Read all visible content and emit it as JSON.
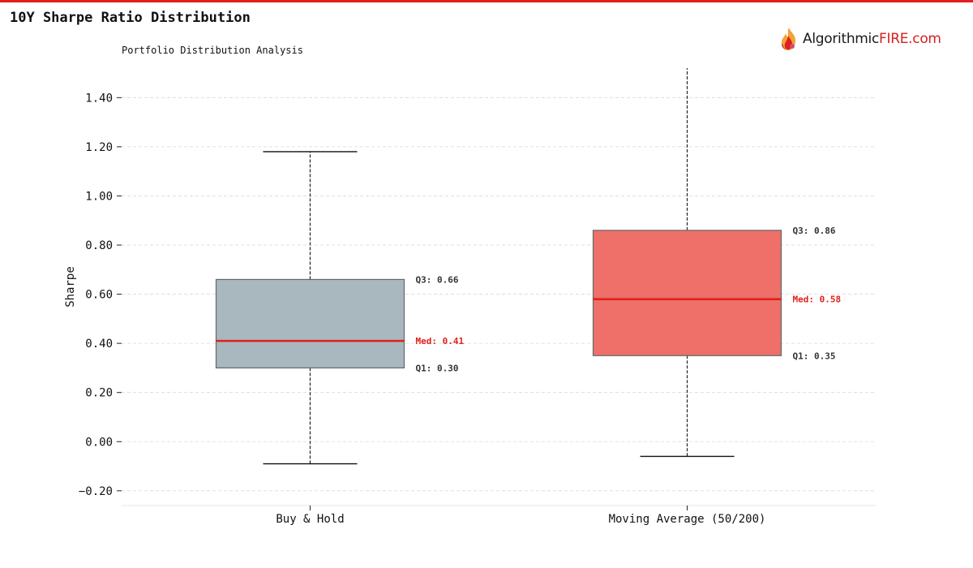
{
  "header": {
    "title": "10Y Sharpe Ratio Distribution",
    "subtitle": "Portfolio Distribution Analysis"
  },
  "logo": {
    "text_main": "Algorithmic",
    "text_accent": "FIRE.com",
    "icon": "flame-icon"
  },
  "colors": {
    "accent": "#e0201b",
    "buy_hold_fill": "#a9b7be",
    "moving_avg_fill": "#ee7068",
    "median_line": "#e0201b"
  },
  "chart_data": {
    "type": "box",
    "title": "10Y Sharpe Ratio Distribution",
    "subtitle": "Portfolio Distribution Analysis",
    "xlabel": "",
    "ylabel": "Sharpe",
    "ylim": [
      -0.26,
      1.52
    ],
    "yticks": [
      -0.2,
      0.0,
      0.2,
      0.4,
      0.6,
      0.8,
      1.0,
      1.2,
      1.4
    ],
    "ytick_labels": [
      "−0.20",
      "0.00",
      "0.20",
      "0.40",
      "0.60",
      "0.80",
      "1.00",
      "1.20",
      "1.40"
    ],
    "grid": true,
    "categories": [
      "Buy & Hold",
      "Moving Average (50/200)"
    ],
    "boxes": [
      {
        "category": "Buy & Hold",
        "whisker_low": -0.09,
        "q1": 0.3,
        "median": 0.41,
        "q3": 0.66,
        "whisker_high": 1.18,
        "color": "#a9b7be",
        "labels": {
          "q3": "Q3: 0.66",
          "median": "Med: 0.41",
          "q1": "Q1: 0.30"
        }
      },
      {
        "category": "Moving Average (50/200)",
        "whisker_low": -0.06,
        "q1": 0.35,
        "median": 0.58,
        "q3": 0.86,
        "whisker_high": 1.52,
        "color": "#ee7068",
        "labels": {
          "q3": "Q3: 0.86",
          "median": "Med: 0.58",
          "q1": "Q1: 0.35"
        }
      }
    ]
  }
}
